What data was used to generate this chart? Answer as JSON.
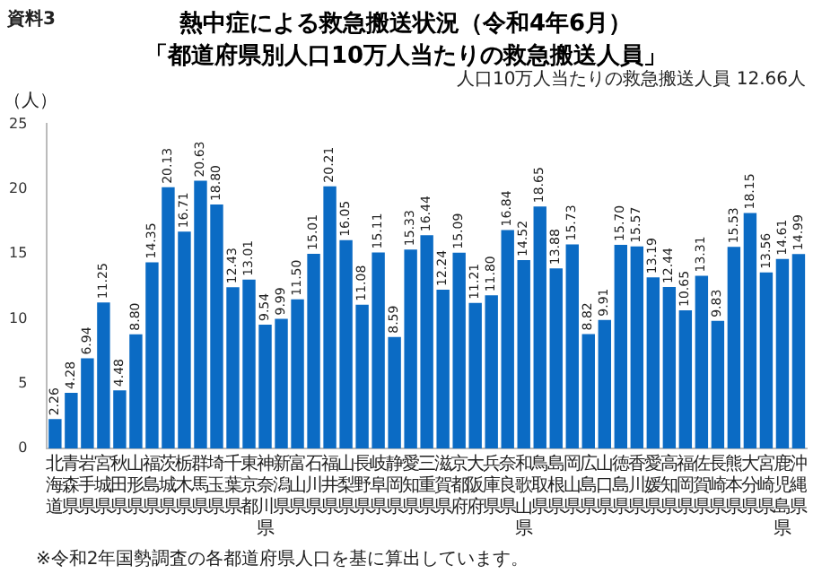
{
  "chart_data": {
    "type": "bar",
    "title": "熱中症による救急搬送状況（令和4年6月）",
    "subtitle": "「都道府県別人口10万人当たりの救急搬送人員」",
    "ylabel": "（人）",
    "annotations": [
      "資料3",
      "※令和2年国勢調査の各都道府県人口を基に算出しています。",
      "人口10万人当たりの救急搬送人員 12.66人"
    ],
    "categories": [
      "北海道",
      "青森県",
      "岩手県",
      "宮城県",
      "秋田県",
      "山形県",
      "福島県",
      "茨城県",
      "栃木県",
      "群馬県",
      "埼玉県",
      "千葉県",
      "東京都",
      "神奈川県",
      "新潟県",
      "富山県",
      "石川県",
      "福井県",
      "山梨県",
      "長野県",
      "岐阜県",
      "静岡県",
      "愛知県",
      "三重県",
      "滋賀県",
      "京都府",
      "大阪府",
      "兵庫県",
      "奈良県",
      "和歌山県",
      "鳥取県",
      "島根県",
      "岡山県",
      "広島県",
      "山口県",
      "徳島県",
      "香川県",
      "愛媛県",
      "高知県",
      "福岡県",
      "佐賀県",
      "長崎県",
      "熊本県",
      "大分県",
      "宮崎県",
      "鹿児島県",
      "沖縄県"
    ],
    "values": [
      2.26,
      4.28,
      6.94,
      11.25,
      4.48,
      8.8,
      14.35,
      20.13,
      16.71,
      20.63,
      18.8,
      12.43,
      13.01,
      9.54,
      9.99,
      11.5,
      15.01,
      20.21,
      16.05,
      11.08,
      15.11,
      8.59,
      15.33,
      16.44,
      12.24,
      15.09,
      11.21,
      11.8,
      16.84,
      14.52,
      18.65,
      13.88,
      15.73,
      8.82,
      9.91,
      15.7,
      15.57,
      13.19,
      12.44,
      10.65,
      13.31,
      9.83,
      15.53,
      18.15,
      13.56,
      14.61,
      14.99
    ],
    "value_labels": [
      "2.26",
      "4.28",
      "6.94",
      "11.25",
      "4.48",
      "8.80",
      "14.35",
      "20.13",
      "16.71",
      "20.63",
      "18.80",
      "12.43",
      "13.01",
      "9.54",
      "9.99",
      "11.50",
      "15.01",
      "20.21",
      "16.05",
      "11.08",
      "15.11",
      "8.59",
      "15.33",
      "16.44",
      "12.24",
      "15.09",
      "11.21",
      "11.80",
      "16.84",
      "14.52",
      "18.65",
      "13.88",
      "15.73",
      "8.82",
      "9.91",
      "15.70",
      "15.57",
      "13.19",
      "12.44",
      "10.65",
      "13.31",
      "9.83",
      "15.53",
      "18.15",
      "13.56",
      "14.61",
      "14.99"
    ],
    "color": "#0b6bc4",
    "ylim": [
      0,
      25
    ],
    "yticks": [
      0,
      5,
      10,
      15,
      20,
      25
    ],
    "grid": false,
    "legend": false
  }
}
